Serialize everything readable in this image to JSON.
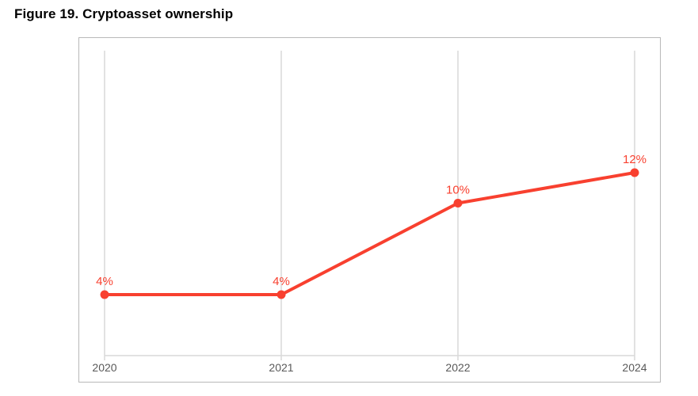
{
  "title": "Figure 19. Cryptoasset ownership",
  "chart_data": {
    "type": "line",
    "title": "Figure 19. Cryptoasset ownership",
    "categories": [
      "2020",
      "2021",
      "2022",
      "2024"
    ],
    "values": [
      4,
      4,
      10,
      12
    ],
    "point_labels": [
      "4%",
      "4%",
      "10%",
      "12%"
    ],
    "xlabel": "",
    "ylabel": "",
    "ylim": [
      0,
      20
    ],
    "grid": "vertical-only",
    "legend_position": "none",
    "colors": {
      "series": "#f8402f",
      "point_label": "#f8402f",
      "gridline": "#d9d9d9",
      "axis_line": "#d9d9d9",
      "tick_label": "#595959",
      "frame_border": "#b9b9b9",
      "background": "#ffffff"
    }
  }
}
